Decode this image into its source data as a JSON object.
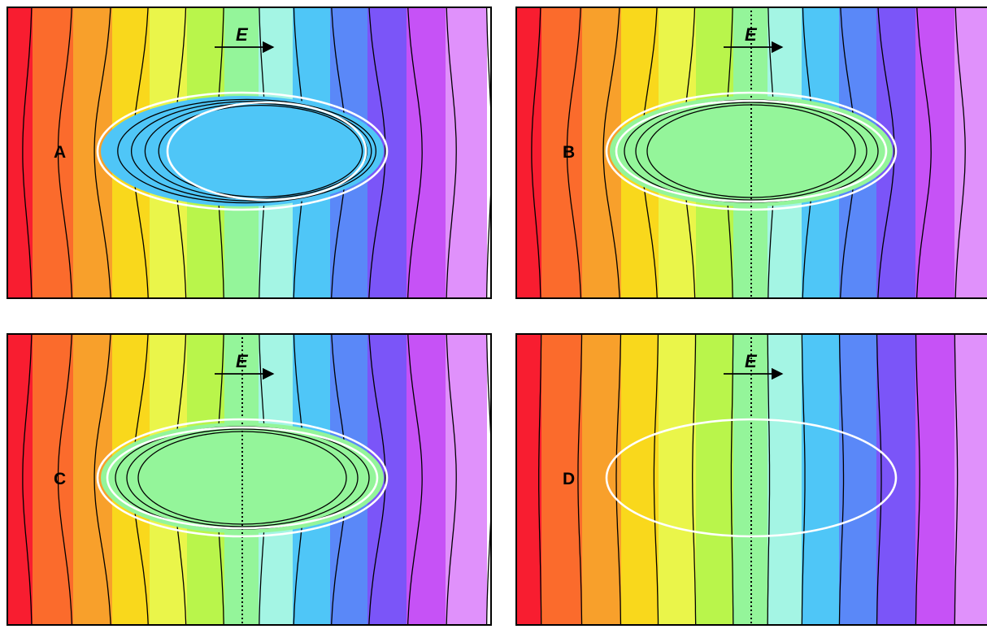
{
  "field_label": "E",
  "band_colors": [
    "#f81d30",
    "#fb6b2c",
    "#f8a02b",
    "#f9d81c",
    "#eaf54a",
    "#b9f54b",
    "#94f59a",
    "#a4f5e4",
    "#4fc6f7",
    "#5a88f8",
    "#7b55f8",
    "#c652f6",
    "#e091fb"
  ],
  "panels": [
    {
      "label": "A",
      "interior_color": "#4fc6f7",
      "inner_ellipse": true,
      "mid_line": false,
      "interior_contours": "left"
    },
    {
      "label": "B",
      "interior_color": "#94f59a",
      "inner_ellipse": true,
      "mid_line": true,
      "interior_contours": "both-thin"
    },
    {
      "label": "C",
      "interior_color": "#94f59a",
      "inner_ellipse": true,
      "mid_line": true,
      "interior_contours": "both"
    },
    {
      "label": "D",
      "interior_color": null,
      "inner_ellipse": false,
      "mid_line": true,
      "interior_contours": "none"
    }
  ]
}
